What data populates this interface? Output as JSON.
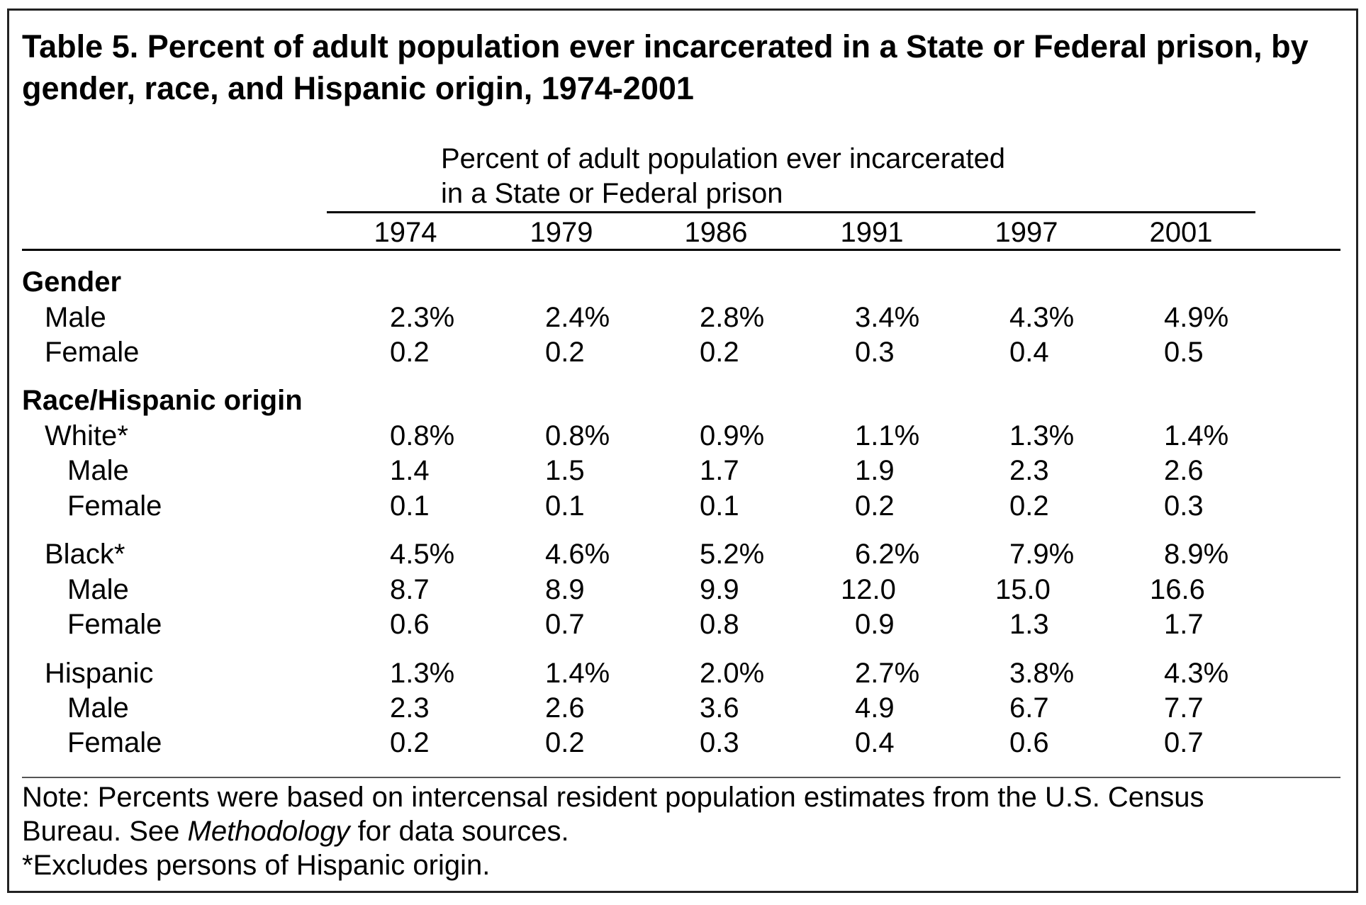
{
  "title": "Table 5.  Percent of adult population ever incarcerated in a State or Federal prison, by gender, race, and Hispanic origin, 1974-2001",
  "subheader": {
    "line1": "Percent of adult population ever incarcerated",
    "line2": "in a State or Federal prison"
  },
  "years": [
    "1974",
    "1979",
    "1986",
    "1991",
    "1997",
    "2001"
  ],
  "sections": {
    "gender": "Gender",
    "race": "Race/Hispanic origin"
  },
  "rows": {
    "male": {
      "label": "Male",
      "values": [
        "2.3%",
        "2.4%",
        "2.8%",
        "3.4%",
        "4.3%",
        "4.9%"
      ]
    },
    "female": {
      "label": "Female",
      "values": [
        "0.2",
        "0.2",
        "0.2",
        "0.3",
        "0.4",
        "0.5"
      ]
    },
    "white": {
      "label": "White*",
      "values": [
        "0.8%",
        "0.8%",
        "0.9%",
        "1.1%",
        "1.3%",
        "1.4%"
      ]
    },
    "white_male": {
      "label": "Male",
      "values": [
        "1.4",
        "1.5",
        "1.7",
        "1.9",
        "2.3",
        "2.6"
      ]
    },
    "white_female": {
      "label": "Female",
      "values": [
        "0.1",
        "0.1",
        "0.1",
        "0.2",
        "0.2",
        "0.3"
      ]
    },
    "black": {
      "label": "Black*",
      "values": [
        "4.5%",
        "4.6%",
        "5.2%",
        "6.2%",
        "7.9%",
        "8.9%"
      ]
    },
    "black_male": {
      "label": "Male",
      "values": [
        "8.7",
        "8.9",
        "9.9",
        "12.0",
        "15.0",
        "16.6"
      ]
    },
    "black_female": {
      "label": "Female",
      "values": [
        "0.6",
        "0.7",
        "0.8",
        "0.9",
        "1.3",
        "1.7"
      ]
    },
    "hispanic": {
      "label": "Hispanic",
      "values": [
        "1.3%",
        "1.4%",
        "2.0%",
        "2.7%",
        "3.8%",
        "4.3%"
      ]
    },
    "hispanic_male": {
      "label": "Male",
      "values": [
        "2.3",
        "2.6",
        "3.6",
        "4.9",
        "6.7",
        "7.7"
      ]
    },
    "hispanic_female": {
      "label": "Female",
      "values": [
        "0.2",
        "0.2",
        "0.3",
        "0.4",
        "0.6",
        "0.7"
      ]
    }
  },
  "notes": {
    "line1": "Note: Percents were based on intercensal resident population estimates from the U.S. Census",
    "line2_pre": "Bureau. See ",
    "line2_em": "Methodology",
    "line2_post": " for data sources.",
    "line3": "*Excludes persons of Hispanic origin."
  }
}
